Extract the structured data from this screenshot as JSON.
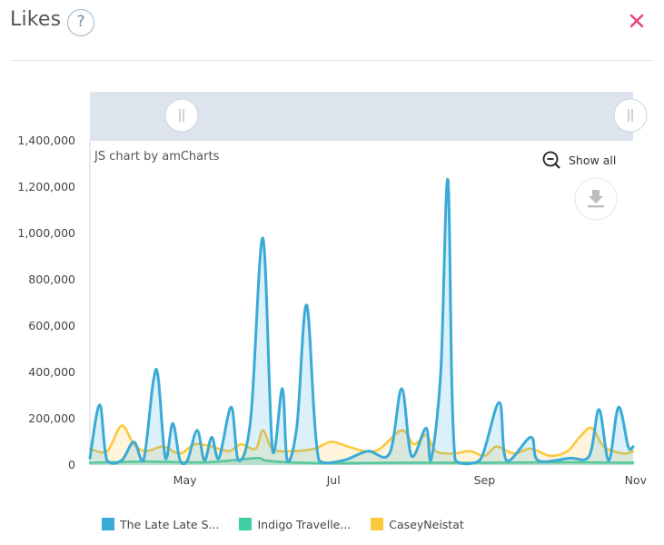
{
  "header": {
    "title": "Likes",
    "help_icon": "question-circle-icon",
    "help_glyph": "?",
    "close_icon": "close-x-icon",
    "close_color": "#e8477a"
  },
  "chart_controls": {
    "credit": "JS chart by amCharts",
    "show_all_label": "Show all",
    "zoom_out_icon": "zoom-out-icon",
    "download_icon": "download-icon",
    "scrollbar_grip_left": "grip-handle-icon",
    "scrollbar_grip_right": "grip-handle-icon"
  },
  "chart_data": {
    "type": "area",
    "title": "Likes",
    "x_axis": {
      "type": "date",
      "ticks": [
        "May",
        "Jul",
        "Sep",
        "Nov"
      ],
      "tick_dates": [
        "2024-05-01",
        "2024-07-01",
        "2024-09-01",
        "2024-11-01"
      ],
      "range": [
        "2024-03-23",
        "2024-11-01"
      ]
    },
    "y_axis": {
      "ticks": [
        "0",
        "200,000",
        "400,000",
        "600,000",
        "800,000",
        "1,000,000",
        "1,200,000",
        "1,400,000"
      ],
      "tick_values": [
        0,
        200000,
        400000,
        600000,
        800000,
        1000000,
        1200000,
        1400000
      ],
      "ylim": [
        0,
        1400000
      ]
    },
    "grid": false,
    "legend_placement": "bottom",
    "series": [
      {
        "name": "The Late Late S...",
        "color": "#3aaad6",
        "points": [
          [
            "2024-03-23",
            30000
          ],
          [
            "2024-03-27",
            260000
          ],
          [
            "2024-03-30",
            20000
          ],
          [
            "2024-04-05",
            20000
          ],
          [
            "2024-04-10",
            100000
          ],
          [
            "2024-04-14",
            20000
          ],
          [
            "2024-04-18",
            360000
          ],
          [
            "2024-04-20",
            380000
          ],
          [
            "2024-04-23",
            30000
          ],
          [
            "2024-04-26",
            180000
          ],
          [
            "2024-04-29",
            20000
          ],
          [
            "2024-05-02",
            20000
          ],
          [
            "2024-05-06",
            150000
          ],
          [
            "2024-05-09",
            20000
          ],
          [
            "2024-05-12",
            120000
          ],
          [
            "2024-05-15",
            30000
          ],
          [
            "2024-05-20",
            250000
          ],
          [
            "2024-05-23",
            20000
          ],
          [
            "2024-05-28",
            200000
          ],
          [
            "2024-06-02",
            980000
          ],
          [
            "2024-06-06",
            60000
          ],
          [
            "2024-06-10",
            330000
          ],
          [
            "2024-06-12",
            20000
          ],
          [
            "2024-06-16",
            170000
          ],
          [
            "2024-06-20",
            690000
          ],
          [
            "2024-06-25",
            20000
          ],
          [
            "2024-07-05",
            20000
          ],
          [
            "2024-07-15",
            60000
          ],
          [
            "2024-07-24",
            50000
          ],
          [
            "2024-07-29",
            330000
          ],
          [
            "2024-08-02",
            40000
          ],
          [
            "2024-08-08",
            160000
          ],
          [
            "2024-08-10",
            20000
          ],
          [
            "2024-08-14",
            400000
          ],
          [
            "2024-08-17",
            1230000
          ],
          [
            "2024-08-20",
            20000
          ],
          [
            "2024-08-30",
            20000
          ],
          [
            "2024-09-07",
            270000
          ],
          [
            "2024-09-10",
            20000
          ],
          [
            "2024-09-20",
            120000
          ],
          [
            "2024-09-23",
            20000
          ],
          [
            "2024-10-06",
            30000
          ],
          [
            "2024-10-14",
            40000
          ],
          [
            "2024-10-18",
            240000
          ],
          [
            "2024-10-22",
            20000
          ],
          [
            "2024-10-26",
            250000
          ],
          [
            "2024-10-30",
            80000
          ],
          [
            "2024-11-01",
            80000
          ]
        ]
      },
      {
        "name": "Indigo Travelle...",
        "color": "#3ecfa2",
        "points": [
          [
            "2024-03-23",
            10000
          ],
          [
            "2024-04-15",
            15000
          ],
          [
            "2024-05-10",
            12000
          ],
          [
            "2024-05-30",
            30000
          ],
          [
            "2024-06-03",
            20000
          ],
          [
            "2024-06-12",
            12000
          ],
          [
            "2024-07-01",
            8000
          ],
          [
            "2024-08-01",
            10000
          ],
          [
            "2024-09-01",
            10000
          ],
          [
            "2024-10-01",
            12000
          ],
          [
            "2024-11-01",
            10000
          ]
        ]
      },
      {
        "name": "CaseyNeistat",
        "color": "#fcc83d",
        "points": [
          [
            "2024-03-23",
            70000
          ],
          [
            "2024-03-30",
            60000
          ],
          [
            "2024-04-05",
            170000
          ],
          [
            "2024-04-10",
            90000
          ],
          [
            "2024-04-15",
            60000
          ],
          [
            "2024-04-22",
            80000
          ],
          [
            "2024-04-29",
            50000
          ],
          [
            "2024-05-05",
            90000
          ],
          [
            "2024-05-12",
            80000
          ],
          [
            "2024-05-19",
            60000
          ],
          [
            "2024-05-24",
            90000
          ],
          [
            "2024-05-30",
            70000
          ],
          [
            "2024-06-02",
            150000
          ],
          [
            "2024-06-06",
            70000
          ],
          [
            "2024-06-14",
            60000
          ],
          [
            "2024-06-23",
            70000
          ],
          [
            "2024-06-30",
            100000
          ],
          [
            "2024-07-07",
            80000
          ],
          [
            "2024-07-14",
            60000
          ],
          [
            "2024-07-20",
            70000
          ],
          [
            "2024-07-29",
            150000
          ],
          [
            "2024-08-03",
            90000
          ],
          [
            "2024-08-08",
            130000
          ],
          [
            "2024-08-12",
            60000
          ],
          [
            "2024-08-19",
            50000
          ],
          [
            "2024-08-26",
            60000
          ],
          [
            "2024-09-01",
            40000
          ],
          [
            "2024-09-06",
            80000
          ],
          [
            "2024-09-13",
            50000
          ],
          [
            "2024-09-20",
            70000
          ],
          [
            "2024-09-28",
            40000
          ],
          [
            "2024-10-05",
            60000
          ],
          [
            "2024-10-10",
            120000
          ],
          [
            "2024-10-15",
            160000
          ],
          [
            "2024-10-20",
            80000
          ],
          [
            "2024-10-28",
            50000
          ],
          [
            "2024-11-01",
            60000
          ]
        ]
      }
    ]
  }
}
